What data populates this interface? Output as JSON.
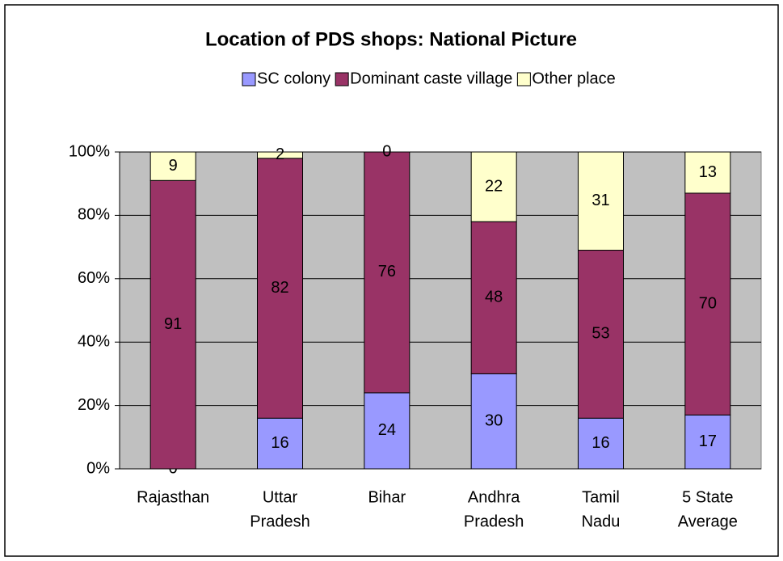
{
  "chart_data": {
    "type": "bar",
    "stacked": true,
    "title": "Location of PDS shops: National Picture",
    "categories": [
      [
        "Rajasthan"
      ],
      [
        "Uttar",
        "Pradesh"
      ],
      [
        "Bihar"
      ],
      [
        "Andhra",
        "Pradesh"
      ],
      [
        "Tamil",
        "Nadu"
      ],
      [
        "5 State",
        "Average"
      ]
    ],
    "series": [
      {
        "name": "SC colony",
        "color": "#9999ff",
        "values": [
          0,
          16,
          24,
          30,
          16,
          17
        ]
      },
      {
        "name": "Dominant caste village",
        "color": "#993366",
        "values": [
          91,
          82,
          76,
          48,
          53,
          70
        ]
      },
      {
        "name": "Other place",
        "color": "#ffffcc",
        "values": [
          9,
          2,
          0,
          22,
          31,
          13
        ]
      }
    ],
    "ylim": [
      0,
      100
    ],
    "yticks": [
      {
        "value": 0,
        "label": "0%"
      },
      {
        "value": 20,
        "label": "20%"
      },
      {
        "value": 40,
        "label": "40%"
      },
      {
        "value": 60,
        "label": "60%"
      },
      {
        "value": 80,
        "label": "80%"
      },
      {
        "value": 100,
        "label": "100%"
      }
    ],
    "grid": true,
    "legend": "top",
    "plot_background": "#c0c0c0"
  }
}
